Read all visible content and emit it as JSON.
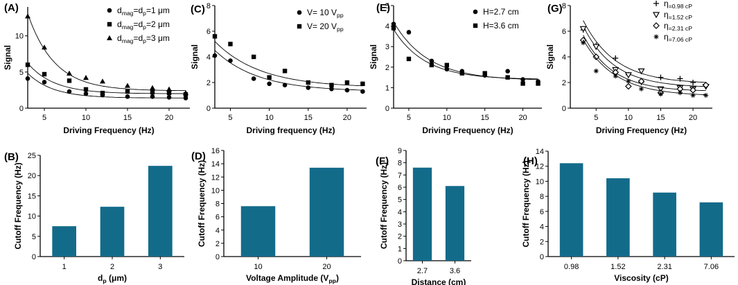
{
  "bar_color": "#136B8A",
  "chart_data": [
    {
      "panel": "A",
      "type": "scatter",
      "xlabel": "Driving Frequency (Hz)",
      "ylabel": "Signal",
      "xlim": [
        3,
        22.5
      ],
      "ylim": [
        0,
        14
      ],
      "xticks": [
        5,
        10,
        15,
        20
      ],
      "yticks": [
        0,
        5,
        10
      ],
      "legend_position": "top-right",
      "series": [
        {
          "label": "d_mag=d_p=1 μm",
          "label_parts": [
            "d",
            "mag",
            "=d",
            "p",
            "=1 μm"
          ],
          "marker": "circle",
          "x": [
            3,
            5,
            8,
            10,
            12,
            15,
            18,
            20,
            22
          ],
          "y": [
            4.1,
            3.6,
            2.3,
            2.0,
            1.8,
            1.6,
            1.6,
            1.5,
            1.4
          ],
          "fit": {
            "a": 9.2,
            "k": 0.33,
            "c": 1.4
          }
        },
        {
          "label": "d_mag=d_p=2 μm",
          "label_parts": [
            "d",
            "mag",
            "=d",
            "p",
            "=2 μm"
          ],
          "marker": "square",
          "x": [
            3,
            5,
            8,
            10,
            12,
            15,
            18,
            20,
            22
          ],
          "y": [
            6.0,
            4.7,
            3.8,
            2.6,
            2.1,
            2.3,
            2.2,
            2.1,
            1.9
          ],
          "fit": {
            "a": 11.0,
            "k": 0.32,
            "c": 2.0
          }
        },
        {
          "label": "d_mag=d_p=3 μm",
          "label_parts": [
            "d",
            "mag",
            "=d",
            "p",
            "=3 μm"
          ],
          "marker": "triangle",
          "x": [
            3,
            5,
            8,
            10,
            12,
            15,
            18,
            20,
            22
          ],
          "y": [
            12.7,
            8.4,
            4.8,
            4.2,
            3.7,
            3.1,
            2.8,
            2.6,
            2.1
          ],
          "fit": {
            "a": 27.0,
            "k": 0.31,
            "c": 2.4
          }
        }
      ]
    },
    {
      "panel": "C",
      "type": "scatter",
      "xlabel": "Driving frequency (Hz)",
      "ylabel": "Signal",
      "xlim": [
        3,
        22.5
      ],
      "ylim": [
        0,
        8
      ],
      "xticks": [
        5,
        10,
        15,
        20
      ],
      "yticks": [
        0,
        2,
        4,
        6,
        8
      ],
      "legend_position": "top-right",
      "series": [
        {
          "label": "V= 10 V_pp",
          "label_parts": [
            "V= 10 V",
            "pp"
          ],
          "marker": "circle",
          "x": [
            3,
            5,
            8,
            10,
            12,
            15,
            18,
            20,
            22
          ],
          "y": [
            4.1,
            3.7,
            2.3,
            1.9,
            1.8,
            1.6,
            1.5,
            1.4,
            1.3
          ],
          "fit": {
            "a": 5.5,
            "k": 0.18,
            "c": 1.3
          }
        },
        {
          "label": "V= 20 V_pp",
          "label_parts": [
            "V= 20 V",
            "pp"
          ],
          "marker": "square",
          "x": [
            3,
            5,
            8,
            10,
            12,
            15,
            18,
            20,
            22
          ],
          "y": [
            5.6,
            5.0,
            4.0,
            2.4,
            2.9,
            2.0,
            1.8,
            2.0,
            1.9
          ],
          "fit": {
            "a": 6.0,
            "k": 0.17,
            "c": 1.6
          }
        }
      ]
    },
    {
      "panel": "E",
      "type": "scatter",
      "xlabel": "Driving Frequency (Hz)",
      "ylabel": "Signal",
      "xlim": [
        3,
        22.5
      ],
      "ylim": [
        0,
        5
      ],
      "xticks": [
        5,
        10,
        15,
        20
      ],
      "yticks": [
        0,
        1,
        2,
        3,
        4,
        5
      ],
      "legend_position": "top-right",
      "series": [
        {
          "label": "H=2.7 cm",
          "label_parts": [
            "H=2.7 cm"
          ],
          "marker": "circle",
          "x": [
            3,
            5,
            8,
            10,
            12,
            15,
            18,
            20,
            22
          ],
          "y": [
            4.1,
            3.7,
            2.3,
            1.9,
            1.8,
            1.6,
            1.8,
            1.4,
            1.3
          ],
          "fit": {
            "a": 5.5,
            "k": 0.22,
            "c": 1.35
          }
        },
        {
          "label": "H=3.6 cm",
          "label_parts": [
            "H=3.6 cm"
          ],
          "marker": "square",
          "x": [
            3,
            5,
            8,
            10,
            12,
            15,
            18,
            20,
            22
          ],
          "y": [
            3.9,
            2.4,
            2.1,
            2.1,
            1.7,
            1.7,
            1.5,
            1.2,
            1.2
          ],
          "fit": {
            "a": 5.0,
            "k": 0.24,
            "c": 1.4
          }
        }
      ]
    },
    {
      "panel": "G",
      "type": "scatter",
      "xlabel": "Driving Frequency (Hz)",
      "ylabel": "Signal",
      "xlim": [
        1,
        23
      ],
      "ylim": [
        0,
        8
      ],
      "xticks": [
        5,
        10,
        15,
        20
      ],
      "yticks": [
        0,
        2,
        4,
        6,
        8
      ],
      "legend_position": "top-right",
      "series": [
        {
          "label": "η=0.98 cP",
          "label_parts": [
            "η",
            "=0.98 cP"
          ],
          "marker": "plus",
          "x": [
            3,
            5,
            8,
            10,
            12,
            15,
            18,
            20,
            22
          ],
          "y": [
            6.1,
            4.9,
            3.9,
            2.6,
            2.0,
            2.4,
            2.3,
            2.0,
            1.8
          ],
          "fit": {
            "a": 9.0,
            "k": 0.2,
            "c": 1.9
          }
        },
        {
          "label": "η=1.52 cP",
          "label_parts": [
            "η",
            "=1.52 cP"
          ],
          "marker": "triangle-down",
          "x": [
            3,
            5,
            8,
            10,
            12,
            15,
            18,
            20,
            22
          ],
          "y": [
            6.2,
            4.8,
            3.0,
            2.6,
            2.9,
            1.5,
            1.6,
            1.5,
            1.7
          ],
          "fit": {
            "a": 9.0,
            "k": 0.21,
            "c": 1.6
          }
        },
        {
          "label": "η=2.31 cP",
          "label_parts": [
            "η",
            "=2.31 cP"
          ],
          "marker": "diamond",
          "x": [
            3,
            5,
            8,
            10,
            12,
            15,
            18,
            20,
            22
          ],
          "y": [
            5.3,
            4.0,
            2.8,
            1.7,
            2.1,
            1.2,
            1.5,
            1.4,
            1.8
          ],
          "fit": {
            "a": 8.5,
            "k": 0.22,
            "c": 1.3
          }
        },
        {
          "label": "η=7.06 cP",
          "label_parts": [
            "η",
            "=7.06 cP"
          ],
          "marker": "star",
          "x": [
            3,
            5,
            8,
            10,
            12,
            15,
            18,
            20,
            22
          ],
          "y": [
            5.1,
            2.9,
            2.5,
            2.1,
            1.5,
            1.1,
            1.2,
            1.0,
            1.0
          ],
          "fit": {
            "a": 8.0,
            "k": 0.2,
            "c": 0.95
          }
        }
      ]
    },
    {
      "panel": "B",
      "type": "bar",
      "categories": [
        "1",
        "2",
        "3"
      ],
      "values": [
        7.5,
        12.3,
        22.4
      ],
      "xlabel": "d_p (μm)",
      "xlabel_parts": [
        "d",
        "p",
        " (μm)"
      ],
      "ylabel": "Cutoff Frequency (Hz)",
      "ylim": [
        0,
        25
      ],
      "yticks": [
        0,
        5,
        10,
        15,
        20,
        25
      ]
    },
    {
      "panel": "D",
      "type": "bar",
      "categories": [
        "10",
        "20"
      ],
      "values": [
        7.6,
        13.4
      ],
      "xlabel": "Voltage Amplitude (V_pp)",
      "xlabel_parts": [
        "Voltage Amplitude (V",
        "pp",
        ")"
      ],
      "ylabel": "Cutoff Frequency (Hz)",
      "ylim": [
        0,
        16
      ],
      "yticks": [
        0,
        2,
        4,
        6,
        8,
        10,
        12,
        14,
        16
      ]
    },
    {
      "panel": "F",
      "type": "bar",
      "categories": [
        "2.7",
        "3.6"
      ],
      "values": [
        7.6,
        6.1
      ],
      "xlabel": "Distance (cm)",
      "xlabel_parts": [
        "Distance (cm)"
      ],
      "ylabel": "Cutoff Frequency (Hz)",
      "ylim": [
        0,
        9
      ],
      "yticks": [
        0,
        1,
        2,
        3,
        4,
        5,
        6,
        7,
        8,
        9
      ]
    },
    {
      "panel": "H",
      "type": "bar",
      "categories": [
        "0.98",
        "1.52",
        "2.31",
        "7.06"
      ],
      "values": [
        12.4,
        10.4,
        8.5,
        7.2
      ],
      "xlabel": "Viscosity (cP)",
      "xlabel_parts": [
        "Viscosity (cP)"
      ],
      "ylabel": "Cutoff Frequency (Hz)",
      "ylim": [
        0,
        14
      ],
      "yticks": [
        0,
        2,
        4,
        6,
        8,
        10,
        12,
        14
      ]
    }
  ]
}
